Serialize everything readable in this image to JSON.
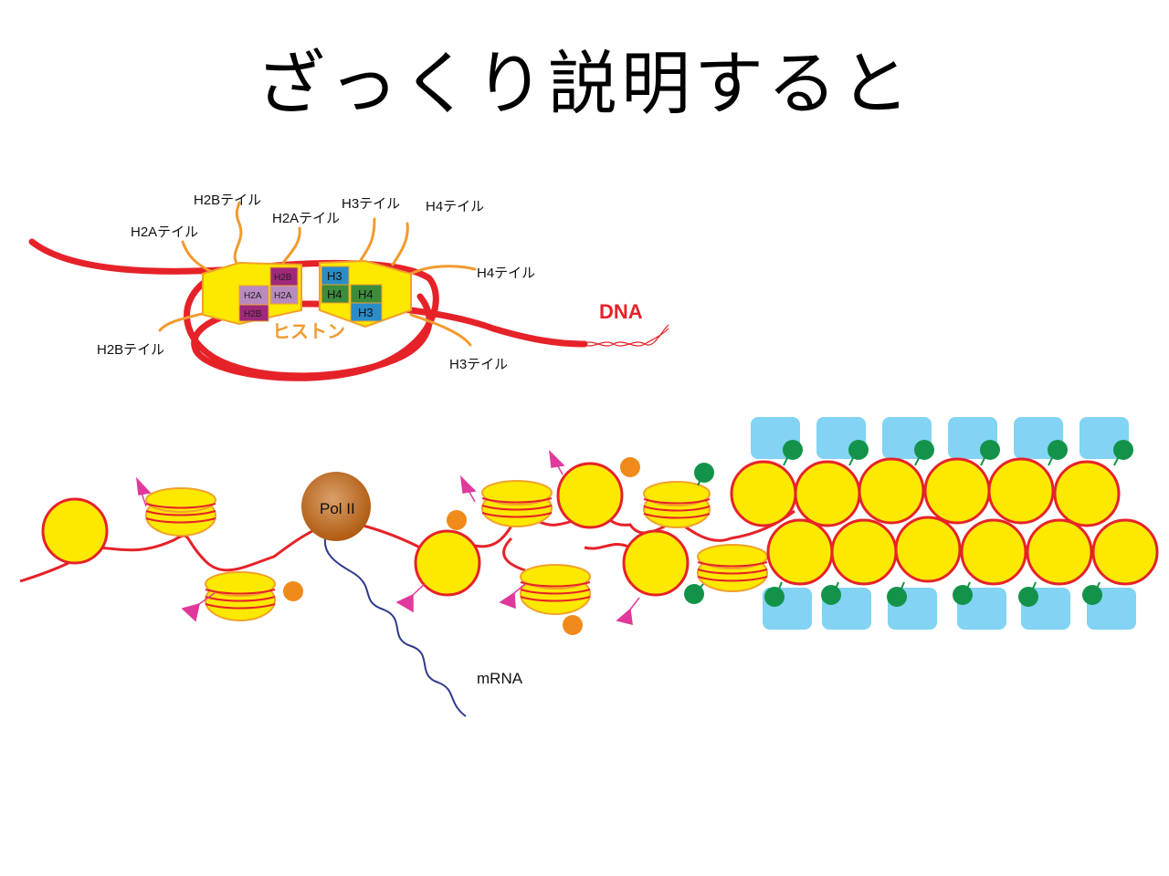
{
  "title": "ざっくり説明すると",
  "colors": {
    "dna": "#e62229",
    "histone": "#fde800",
    "histone_edge": "#f1a12b",
    "tail": "#f29a2e",
    "h2a": "#b98ac0",
    "h2b": "#a0287a",
    "h3": "#2a8cc8",
    "h4": "#3c8c3c",
    "acetyl": "#f08a1a",
    "methyl_flag": "#e0399b",
    "methyl_dot": "#13934a",
    "binding_protein": "#82d3f4",
    "polii": "#b8641c",
    "mrna": "#2e3a8c"
  },
  "nucleosome": {
    "tail_labels": [
      "H2Bテイル",
      "H2Aテイル",
      "H2Aテイル",
      "H3テイル",
      "H4テイル",
      "H4テイル",
      "H2Bテイル",
      "H3テイル"
    ],
    "cells_left": [
      "H2A",
      "H2B",
      "H2B",
      "H2A"
    ],
    "cells_right": [
      "H3",
      "H4",
      "H4",
      "H3"
    ],
    "histone_label": "ヒストン",
    "dna_label": "DNA"
  },
  "chromatin": {
    "pol_label": "Pol II",
    "mrna_label": "mRNA"
  }
}
